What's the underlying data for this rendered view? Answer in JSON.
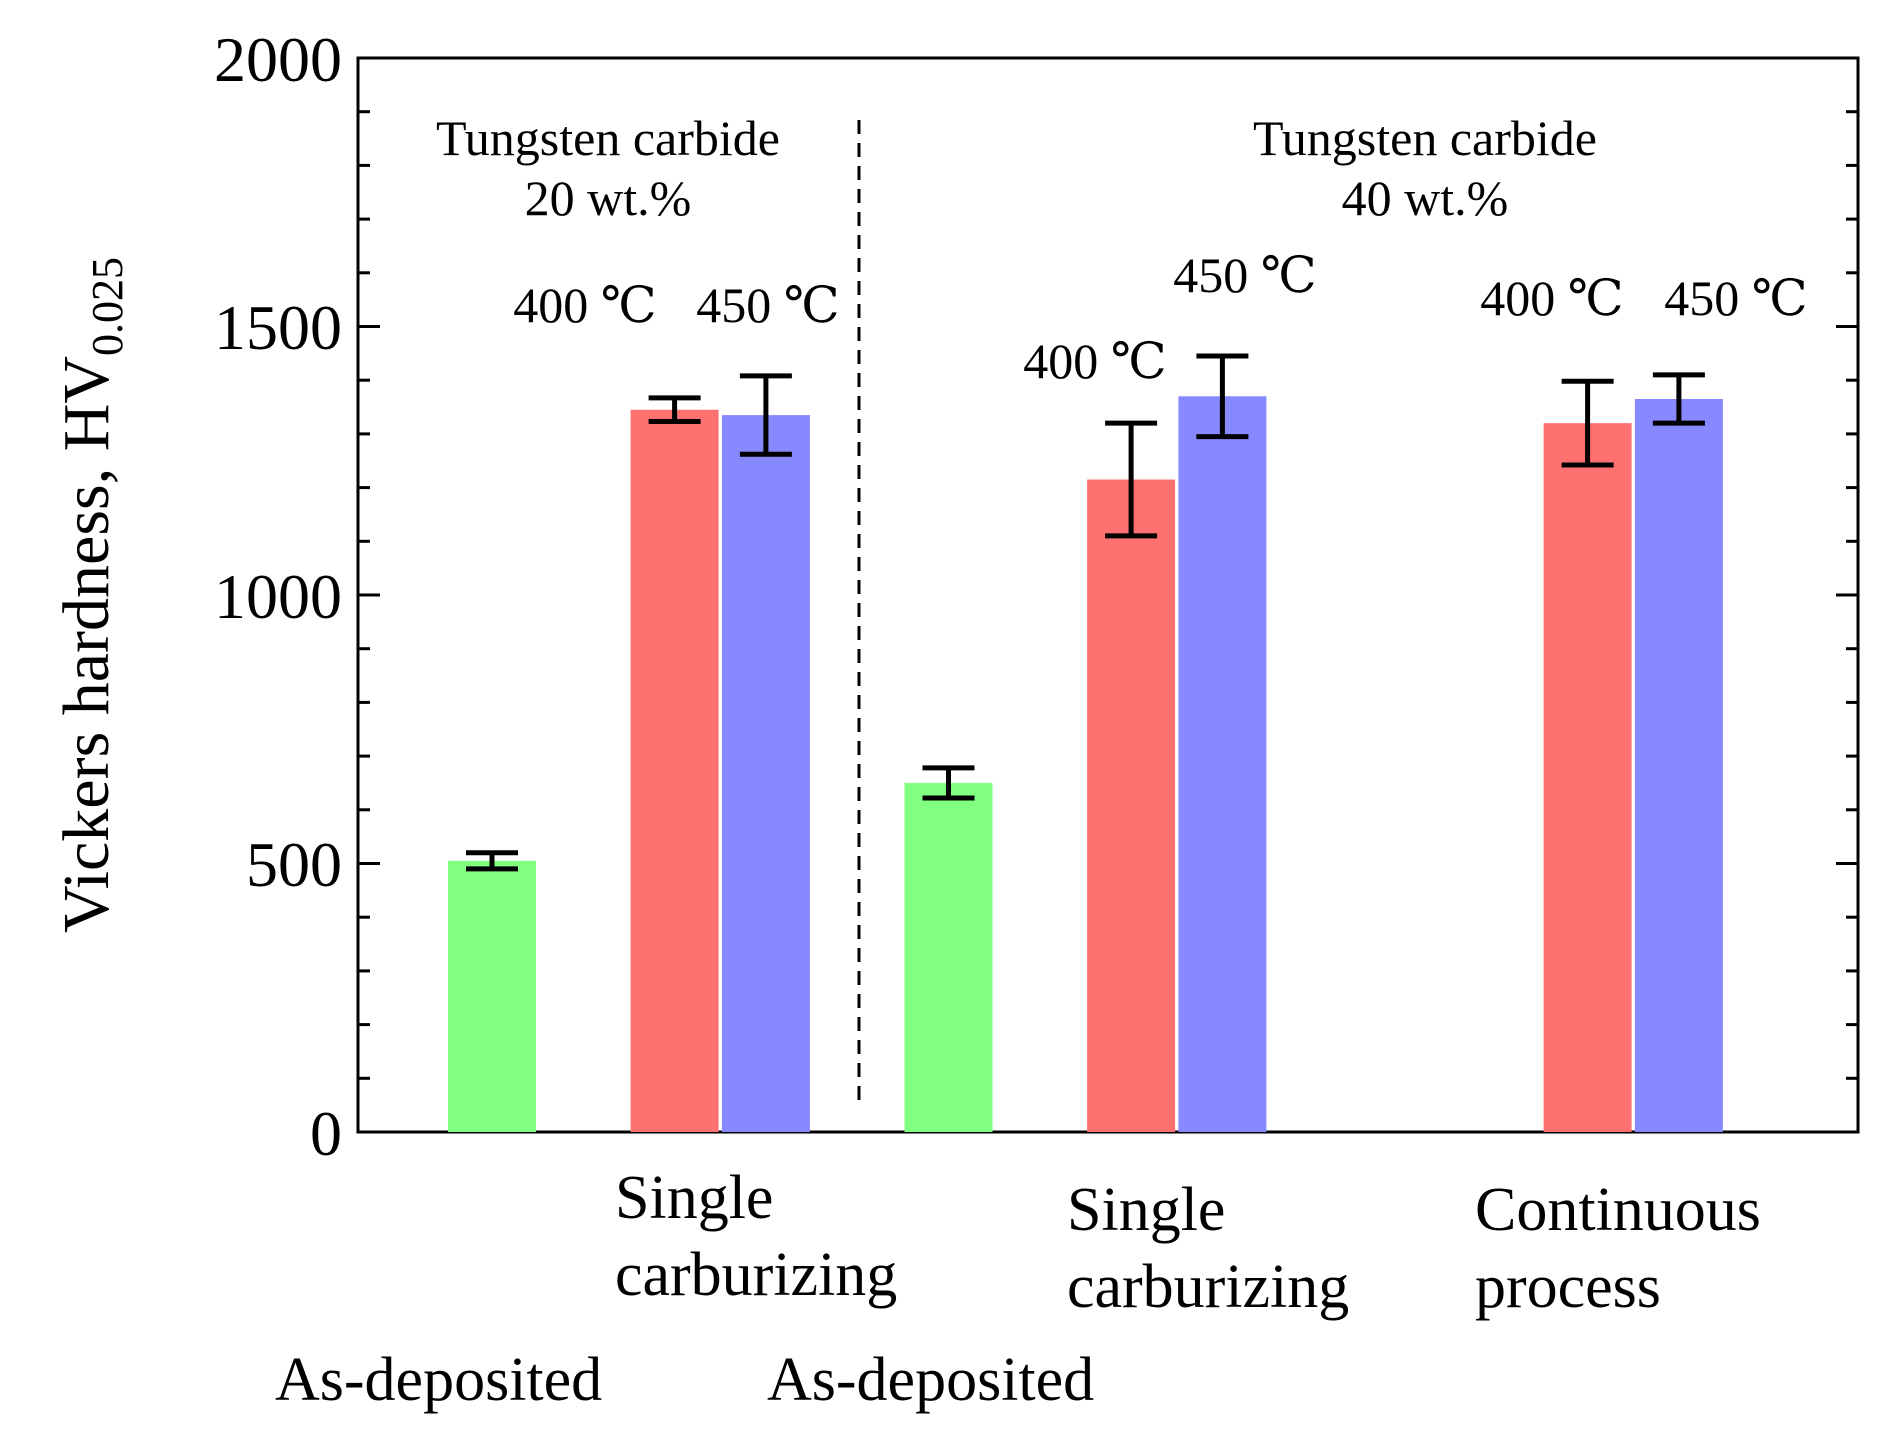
{
  "chart_data": {
    "type": "bar",
    "ylabel": "Vickers hardness, HV",
    "ylabel_sub": "0.025",
    "ylim": [
      0,
      2000
    ],
    "yticks": [
      "0",
      "500",
      "1000",
      "1500",
      "2000"
    ],
    "grid": false,
    "colors": {
      "as_deposited": "#80ff80",
      "c400": "#ff7070",
      "c450": "#8888ff"
    },
    "groups": [
      {
        "title_line1": "Tungsten carbide",
        "title_line2": "20 wt.%"
      },
      {
        "title_line1": "Tungsten carbide",
        "title_line2": "40 wt.%"
      }
    ],
    "bars": [
      {
        "x": 1.0,
        "value": 505,
        "err": 15,
        "color_key": "as_deposited",
        "label": ""
      },
      {
        "x": 3.0,
        "value": 1345,
        "err": 22,
        "color_key": "c400",
        "label": "400 ℃"
      },
      {
        "x": 4.0,
        "value": 1335,
        "err": 73,
        "color_key": "c450",
        "label": "450 ℃"
      },
      {
        "x": 6.0,
        "value": 650,
        "err": 28,
        "color_key": "as_deposited",
        "label": ""
      },
      {
        "x": 8.0,
        "value": 1215,
        "err": 105,
        "color_key": "c400",
        "label": "400 ℃"
      },
      {
        "x": 9.0,
        "value": 1370,
        "err": 75,
        "color_key": "c450",
        "label": "450 ℃"
      },
      {
        "x": 13.0,
        "value": 1320,
        "err": 78,
        "color_key": "c400",
        "label": "400 ℃"
      },
      {
        "x": 14.0,
        "value": 1365,
        "err": 45,
        "color_key": "c450",
        "label": "450 ℃"
      }
    ],
    "categories": [
      {
        "line1": "As-deposited",
        "line2": ""
      },
      {
        "line1": "Single",
        "line2": "carburizing"
      },
      {
        "line1": "As-deposited",
        "line2": ""
      },
      {
        "line1": "Single",
        "line2": "carburizing"
      },
      {
        "line1": "Continuous",
        "line2": "process"
      }
    ]
  }
}
